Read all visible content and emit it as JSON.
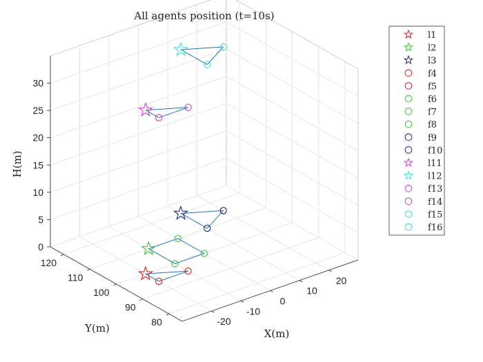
{
  "chart_data": {
    "type": "scatter3d",
    "title": "All agents position (t=10s)",
    "xlabel": "X(m)",
    "ylabel": "Y(m)",
    "zlabel": "H(m)",
    "xlim": [
      -30,
      30
    ],
    "ylim": [
      75,
      125
    ],
    "zlim": [
      0,
      35
    ],
    "xticks": [
      -20,
      -10,
      0,
      10,
      20
    ],
    "yticks": [
      80,
      90,
      100,
      110,
      120
    ],
    "zticks": [
      0,
      5,
      10,
      15,
      20,
      25,
      30
    ],
    "grid": true,
    "legend_position": "outside-right",
    "series": [
      {
        "name": "l1",
        "marker": "star",
        "color": "#e31a1c",
        "x": -20,
        "y": 100,
        "z": 0
      },
      {
        "name": "l2",
        "marker": "star",
        "color": "#2ecc2e",
        "x": -10,
        "y": 110,
        "z": 0
      },
      {
        "name": "l3",
        "marker": "star",
        "color": "#1a237e",
        "x": 10,
        "y": 120,
        "z": 0
      },
      {
        "name": "f4",
        "marker": "circle",
        "color": "#e31a1c",
        "x": -20,
        "y": 95,
        "z": 0
      },
      {
        "name": "f5",
        "marker": "circle",
        "color": "#e31a1c",
        "x": -10,
        "y": 95,
        "z": 0
      },
      {
        "name": "f6",
        "marker": "circle",
        "color": "#2ecc2e",
        "x": 0,
        "y": 110,
        "z": 0
      },
      {
        "name": "f7",
        "marker": "circle",
        "color": "#2ecc2e",
        "x": -10,
        "y": 100,
        "z": 0
      },
      {
        "name": "f8",
        "marker": "circle",
        "color": "#2ecc2e",
        "x": 0,
        "y": 100,
        "z": 0
      },
      {
        "name": "f9",
        "marker": "circle",
        "color": "#1a237e",
        "x": 10,
        "y": 110,
        "z": 0
      },
      {
        "name": "f10",
        "marker": "circle",
        "color": "#1a237e",
        "x": 20,
        "y": 115,
        "z": 0
      },
      {
        "name": "l11",
        "marker": "star",
        "color": "#d63ad6",
        "x": -20,
        "y": 100,
        "z": 30
      },
      {
        "name": "l12",
        "marker": "star",
        "color": "#2ee6e6",
        "x": 10,
        "y": 120,
        "z": 30
      },
      {
        "name": "f13",
        "marker": "circle",
        "color": "#d63ad6",
        "x": -20,
        "y": 95,
        "z": 30
      },
      {
        "name": "f14",
        "marker": "circle",
        "color": "#d63ad6",
        "x": -10,
        "y": 95,
        "z": 30
      },
      {
        "name": "f15",
        "marker": "circle",
        "color": "#2ee6e6",
        "x": 10,
        "y": 110,
        "z": 30
      },
      {
        "name": "f16",
        "marker": "circle",
        "color": "#2ee6e6",
        "x": 20,
        "y": 115,
        "z": 30
      }
    ],
    "links": [
      [
        "l1",
        "f4"
      ],
      [
        "f4",
        "f5"
      ],
      [
        "f5",
        "l1"
      ],
      [
        "l2",
        "f6"
      ],
      [
        "f6",
        "f8"
      ],
      [
        "f8",
        "f7"
      ],
      [
        "f7",
        "l2"
      ],
      [
        "l3",
        "f9"
      ],
      [
        "f9",
        "f10"
      ],
      [
        "f10",
        "l3"
      ],
      [
        "l11",
        "f13"
      ],
      [
        "f13",
        "f14"
      ],
      [
        "f14",
        "l11"
      ],
      [
        "l12",
        "f15"
      ],
      [
        "f15",
        "f16"
      ],
      [
        "f16",
        "l12"
      ]
    ],
    "link_color": "#1f78b4"
  }
}
